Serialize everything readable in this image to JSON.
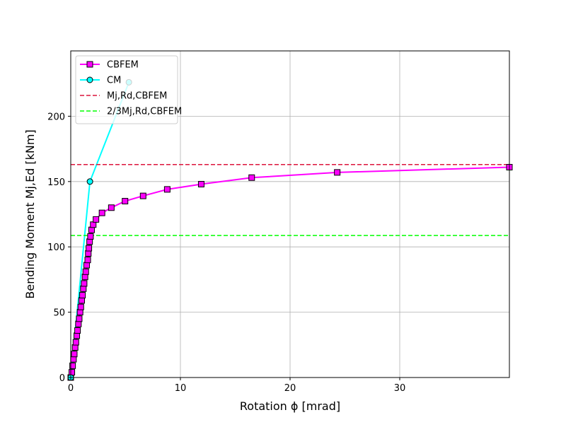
{
  "chart_data": {
    "type": "line",
    "title": "",
    "xlabel": "Rotation ϕ [mrad]",
    "ylabel": "Bending Moment Mj,Ed [kNm]",
    "xlim": [
      0,
      40
    ],
    "ylim": [
      0,
      250
    ],
    "xticks": [
      0,
      10,
      20,
      30
    ],
    "yticks": [
      0,
      50,
      100,
      150,
      200
    ],
    "grid": true,
    "legend_position": "top-left",
    "series": [
      {
        "name": "CBFEM",
        "type": "line-marker",
        "marker": "square",
        "color": "#ff00ff",
        "points": [
          [
            0.0,
            0
          ],
          [
            0.1,
            4
          ],
          [
            0.17,
            9
          ],
          [
            0.25,
            14
          ],
          [
            0.32,
            18
          ],
          [
            0.4,
            23
          ],
          [
            0.47,
            27
          ],
          [
            0.55,
            32
          ],
          [
            0.62,
            36
          ],
          [
            0.7,
            41
          ],
          [
            0.77,
            45
          ],
          [
            0.85,
            50
          ],
          [
            0.92,
            54
          ],
          [
            1.0,
            59
          ],
          [
            1.07,
            63
          ],
          [
            1.15,
            68
          ],
          [
            1.22,
            72
          ],
          [
            1.3,
            77
          ],
          [
            1.37,
            81
          ],
          [
            1.45,
            86
          ],
          [
            1.55,
            90
          ],
          [
            1.6,
            95
          ],
          [
            1.65,
            99
          ],
          [
            1.72,
            104
          ],
          [
            1.8,
            108
          ],
          [
            1.9,
            113
          ],
          [
            2.05,
            117
          ],
          [
            2.3,
            121
          ],
          [
            2.85,
            126
          ],
          [
            3.7,
            130
          ],
          [
            4.95,
            135
          ],
          [
            6.6,
            139
          ],
          [
            8.8,
            144
          ],
          [
            11.9,
            148
          ],
          [
            16.5,
            153
          ],
          [
            24.3,
            157
          ],
          [
            40,
            161
          ]
        ]
      },
      {
        "name": "CM",
        "type": "line-marker",
        "marker": "circle",
        "color": "#00ffff",
        "points": [
          [
            0.0,
            0
          ],
          [
            1.75,
            150
          ],
          [
            5.3,
            226
          ]
        ]
      },
      {
        "name": "Mj,Rd,CBFEM",
        "type": "hline",
        "style": "dashed",
        "color": "#dc143c",
        "y": 163
      },
      {
        "name": "2/3Mj,Rd,CBFEM",
        "type": "hline",
        "style": "dashed",
        "color": "#00ff00",
        "y": 108.7
      }
    ]
  }
}
